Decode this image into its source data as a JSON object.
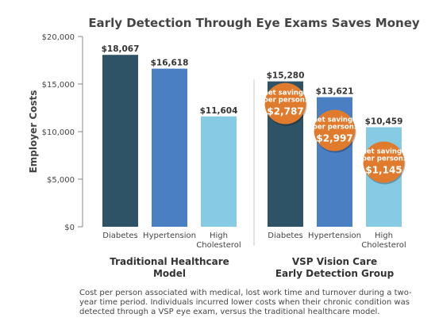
{
  "chart_data": {
    "type": "bar",
    "title": "Early Detection Through Eye Exams Saves Money",
    "ylabel": "Employer Costs",
    "xlabel": "",
    "ylim": [
      0,
      20000
    ],
    "y_ticks": [
      "$0",
      "$5,000",
      "$10,000",
      "$15,000",
      "$20,000"
    ],
    "y_tick_values": [
      0,
      5000,
      10000,
      15000,
      20000
    ],
    "grid": false,
    "groups": [
      {
        "label_lines": [
          "Traditional Healthcare",
          "Model"
        ],
        "bars": [
          {
            "category_lines": [
              "Diabetes"
            ],
            "value": 18067,
            "value_label": "$18,067",
            "color": "#2e5367"
          },
          {
            "category_lines": [
              "Hypertension"
            ],
            "value": 16618,
            "value_label": "$16,618",
            "color": "#4a7fc4"
          },
          {
            "category_lines": [
              "High",
              "Cholesterol"
            ],
            "value": 11604,
            "value_label": "$11,604",
            "color": "#86cbe3"
          }
        ]
      },
      {
        "label_lines": [
          "VSP Vision Care",
          "Early Detection Group"
        ],
        "bars": [
          {
            "category_lines": [
              "Diabetes"
            ],
            "value": 15280,
            "value_label": "$15,280",
            "color": "#2e5367"
          },
          {
            "category_lines": [
              "Hypertension"
            ],
            "value": 13621,
            "value_label": "$13,621",
            "color": "#4a7fc4"
          },
          {
            "category_lines": [
              "High",
              "Cholesterol"
            ],
            "value": 10459,
            "value_label": "$10,459",
            "color": "#86cbe3"
          }
        ]
      }
    ],
    "annotations": [
      {
        "label_lines": [
          "net savings",
          "per person:"
        ],
        "amount": "$2,787",
        "bar_ref": [
          1,
          0
        ]
      },
      {
        "label_lines": [
          "net savings",
          "per person:"
        ],
        "amount": "$2,997",
        "bar_ref": [
          1,
          1
        ]
      },
      {
        "label_lines": [
          "net savings",
          "per person:"
        ],
        "amount": "$1,145",
        "bar_ref": [
          1,
          2
        ]
      }
    ],
    "badge_color": "#e07a2c"
  },
  "footnote": "Cost per person associated with medical, lost work time and turnover during a two-year time period. Individuals incurred lower costs when their chronic condition was detected through a VSP eye exam, versus the traditional healthcare model."
}
